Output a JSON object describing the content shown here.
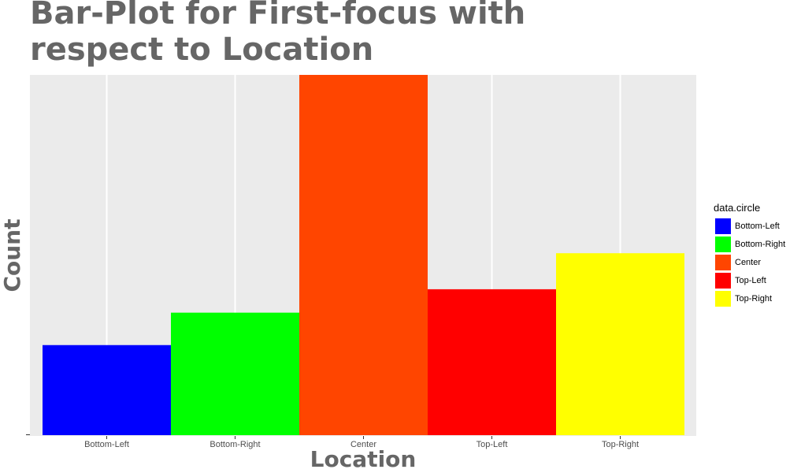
{
  "chart_data": {
    "type": "bar",
    "title": "Bar-Plot for First-focus with respect to Location",
    "xlabel": "Location",
    "ylabel": "Count",
    "categories": [
      "Bottom-Left",
      "Bottom-Right",
      "Center",
      "Top-Left",
      "Top-Right"
    ],
    "values": [
      25,
      34,
      100,
      40.5,
      50.5
    ],
    "ylim": [
      0,
      100
    ],
    "colors": [
      "#0000ff",
      "#00ff00",
      "#ff4500",
      "#ff0000",
      "#ffff00"
    ],
    "ytick_labels": [
      ""
    ],
    "grid": true,
    "legend": {
      "title": "data.circle",
      "position": "right",
      "entries": [
        "Bottom-Left",
        "Bottom-Right",
        "Center",
        "Top-Left",
        "Top-Right"
      ]
    }
  }
}
